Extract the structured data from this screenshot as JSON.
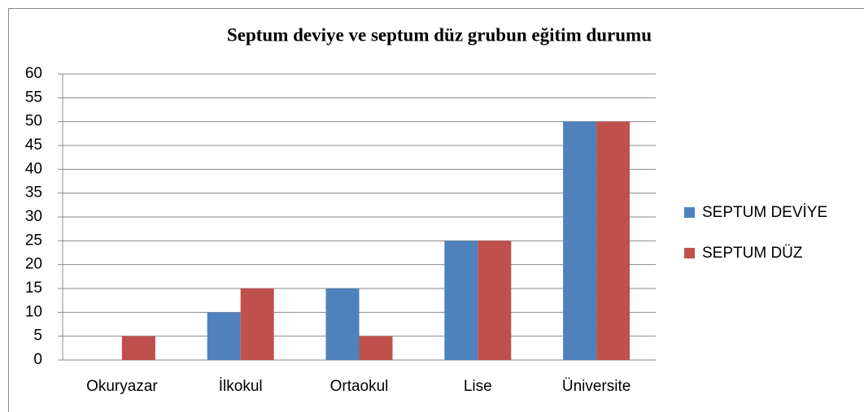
{
  "chart_data": {
    "type": "bar",
    "title": "Septum deviye ve septum düz grubun eğitim durumu",
    "categories": [
      "Okuryazar",
      "İlkokul",
      "Ortaokul",
      "Lise",
      "Üniversite"
    ],
    "series": [
      {
        "name": "SEPTUM DEVİYE",
        "color": "#4f81bd",
        "values": [
          0,
          10,
          15,
          25,
          50
        ]
      },
      {
        "name": "SEPTUM DÜZ",
        "color": "#c0504d",
        "values": [
          5,
          15,
          5,
          25,
          50
        ]
      }
    ],
    "ylim": [
      0,
      60
    ],
    "yticks": [
      0,
      5,
      10,
      15,
      20,
      25,
      30,
      35,
      40,
      45,
      50,
      55,
      60
    ],
    "grid": true,
    "legend": "right"
  }
}
